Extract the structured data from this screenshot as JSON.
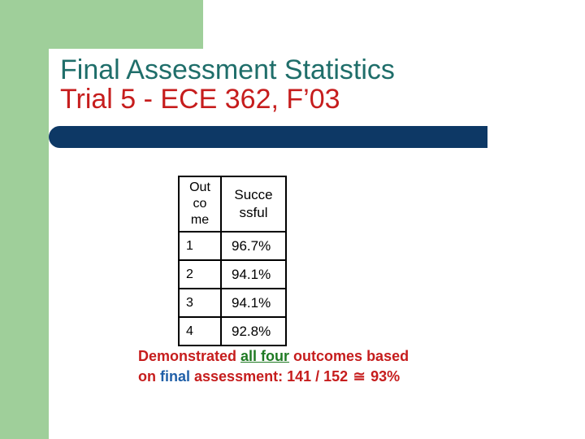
{
  "slide": {
    "title_line1": "Final Assessment Statistics",
    "title_line2": "Trial 5 - ECE 362, F’03",
    "colors": {
      "title_line1": "#1f6e6a",
      "title_line2": "#c61d1d",
      "bar": "#0d3865",
      "accent_green": "#9fcf9a"
    }
  },
  "table": {
    "headers": [
      "Out co me",
      "Succe ssful"
    ],
    "header_lines": {
      "outcome": [
        "Out",
        "co",
        "me"
      ],
      "successful": [
        "Succe",
        "ssful"
      ]
    },
    "rows": [
      {
        "outcome": "1",
        "successful": "96.7%"
      },
      {
        "outcome": "2",
        "successful": "94.1%"
      },
      {
        "outcome": "3",
        "successful": "94.1%"
      },
      {
        "outcome": "4",
        "successful": "92.8%"
      }
    ]
  },
  "footer": {
    "part1": "Demonstrated ",
    "part2": "all four",
    "part3": " outcomes based",
    "part4": "on ",
    "part5": "final",
    "part6": " assessment: 141 / 152 ",
    "symbol": "≅",
    "part7": " 93%"
  }
}
